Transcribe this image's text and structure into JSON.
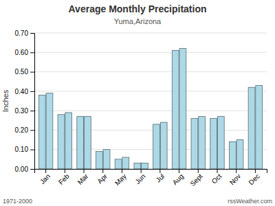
{
  "chart_data": {
    "type": "bar",
    "title": "Average Monthly Precipitation",
    "subtitle": "Yuma,Arizona",
    "ylabel": "Inches",
    "annotations": [
      "1971-2000",
      "rssWeather.com"
    ],
    "categories": [
      "Jan",
      "Feb",
      "Mar",
      "Apr",
      "May",
      "Jun",
      "Jul",
      "Aug",
      "Sept",
      "Oct",
      "Nov",
      "Dec"
    ],
    "series": [
      {
        "color": "#ADD8E6",
        "values": [
          0.38,
          0.28,
          0.27,
          0.09,
          0.05,
          0.03,
          0.23,
          0.61,
          0.26,
          0.26,
          0.14,
          0.42
        ]
      },
      {
        "color": "#ADD8E6",
        "values": [
          0.39,
          0.29,
          0.27,
          0.1,
          0.06,
          0.03,
          0.24,
          0.62,
          0.27,
          0.27,
          0.15,
          0.43
        ]
      }
    ],
    "ylim": [
      0,
      0.7
    ],
    "yticks": [
      {
        "value": 0.0,
        "label": "0.00"
      },
      {
        "value": 0.1,
        "label": "0.10"
      },
      {
        "value": 0.2,
        "label": "0.20"
      },
      {
        "value": 0.3,
        "label": "0.30"
      },
      {
        "value": 0.4,
        "label": "0.40"
      },
      {
        "value": 0.5,
        "label": "0.50"
      },
      {
        "value": 0.6,
        "label": "0.60"
      },
      {
        "value": 0.7,
        "label": "0.70"
      }
    ],
    "grid": true
  }
}
